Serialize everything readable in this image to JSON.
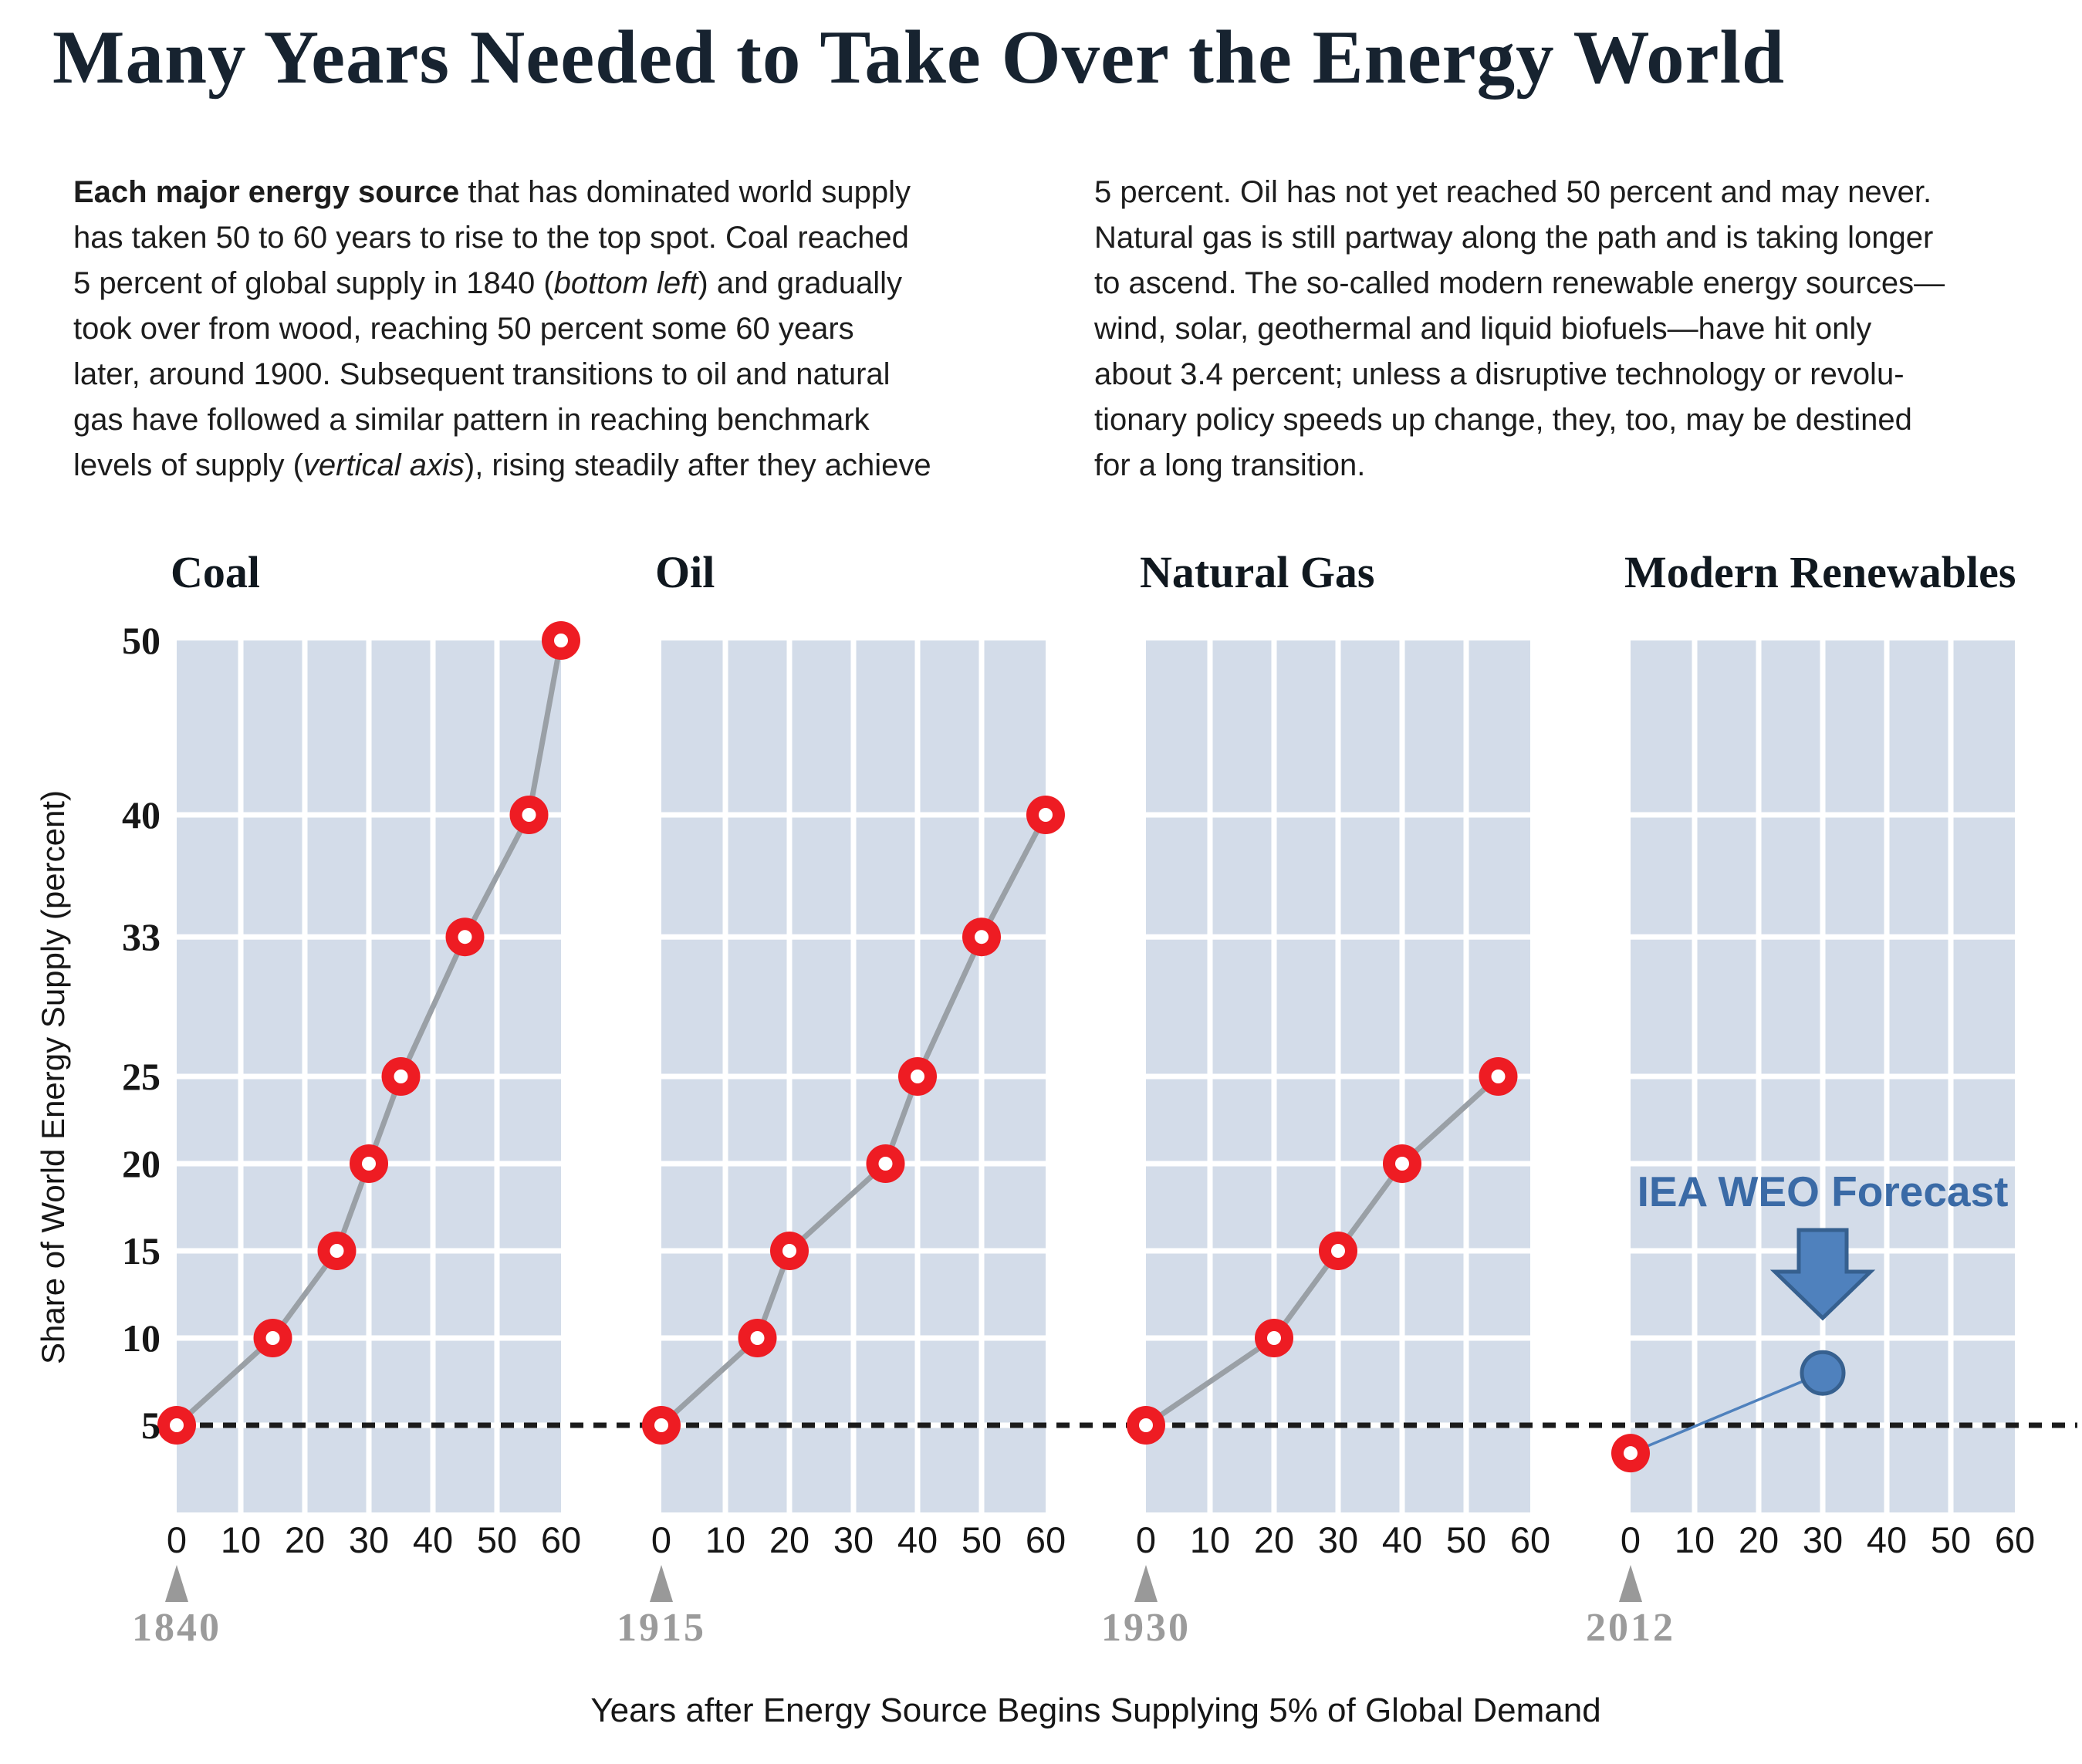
{
  "title": "Many Years Needed to Take Over the Energy World",
  "intro": {
    "left": {
      "lines": [
        [
          {
            "t": "Each major energy source ",
            "b": true
          },
          {
            "t": "that has dominated world supply"
          }
        ],
        [
          {
            "t": "has taken 50 to 60 years to rise to the top spot. Coal reached"
          }
        ],
        [
          {
            "t": "5 percent of global supply in 1840 ("
          },
          {
            "t": "bottom left",
            "i": true
          },
          {
            "t": ") and gradually"
          }
        ],
        [
          {
            "t": "took over from wood, reaching 50 percent some 60 years"
          }
        ],
        [
          {
            "t": "later, around 1900. Subsequent transitions to oil and natural"
          }
        ],
        [
          {
            "t": "gas have followed a similar pattern in reaching benchmark"
          }
        ],
        [
          {
            "t": "levels of supply ("
          },
          {
            "t": "vertical axis",
            "i": true
          },
          {
            "t": "), rising steadily after they achieve"
          }
        ]
      ]
    },
    "right": {
      "lines": [
        [
          {
            "t": "5 percent. Oil has not yet reached 50 percent and may never."
          }
        ],
        [
          {
            "t": "Natural gas is still partway along the path and is taking longer"
          }
        ],
        [
          {
            "t": "to ascend. The so-called modern renewable energy sources—"
          }
        ],
        [
          {
            "t": "wind, solar, geothermal and liquid biofuels—have hit only"
          }
        ],
        [
          {
            "t": "about 3.4 percent; unless a disruptive technology or revolu-"
          }
        ],
        [
          {
            "t": "tionary policy speeds up change, they, too, may be destined"
          }
        ],
        [
          {
            "t": "for a long transition."
          }
        ]
      ]
    }
  },
  "chart_data": {
    "type": "line",
    "title": "Many Years Needed to Take Over the Energy World",
    "ylabel": "Share of World Energy Supply (percent)",
    "xlabel": "Years after Energy Source Begins Supplying 5% of Global Demand",
    "x_ticks": [
      0,
      10,
      20,
      30,
      40,
      50,
      60
    ],
    "y_ticks": [
      5,
      10,
      15,
      20,
      25,
      33,
      40,
      50
    ],
    "xlim": [
      0,
      60
    ],
    "ylim": [
      0,
      50
    ],
    "grid": true,
    "benchmark_pct": 5,
    "legend_position": "none",
    "panels": [
      {
        "label": "Coal",
        "start_year": "1840",
        "points": [
          [
            0,
            5
          ],
          [
            15,
            10
          ],
          [
            25,
            15
          ],
          [
            30,
            20
          ],
          [
            35,
            25
          ],
          [
            45,
            33
          ],
          [
            55,
            40
          ],
          [
            60,
            50
          ]
        ]
      },
      {
        "label": "Oil",
        "start_year": "1915",
        "points": [
          [
            0,
            5
          ],
          [
            15,
            10
          ],
          [
            20,
            15
          ],
          [
            35,
            20
          ],
          [
            40,
            25
          ],
          [
            50,
            33
          ],
          [
            60,
            40
          ]
        ]
      },
      {
        "label": "Natural Gas",
        "start_year": "1930",
        "points": [
          [
            0,
            5
          ],
          [
            20,
            10
          ],
          [
            30,
            15
          ],
          [
            40,
            20
          ],
          [
            55,
            25
          ]
        ]
      },
      {
        "label": "Modern Renewables",
        "start_year": "2012",
        "points": [
          [
            0,
            3.4
          ]
        ],
        "forecast": {
          "label": "IEA WEO Forecast",
          "point": [
            30,
            8
          ]
        }
      }
    ]
  },
  "colors": {
    "grid_cell": "#d3dce9",
    "point_red": "#ee1c23",
    "line_gray": "#9aa0a6",
    "dashed_black": "#1b1b1b",
    "forecast_blue": "#4f81bd",
    "forecast_blue_dark": "#36608f",
    "forecast_text_blue": "#3a6aa6",
    "year_gray": "#9b9b9b",
    "triangle_gray": "#999999",
    "title_ink": "#172330"
  }
}
